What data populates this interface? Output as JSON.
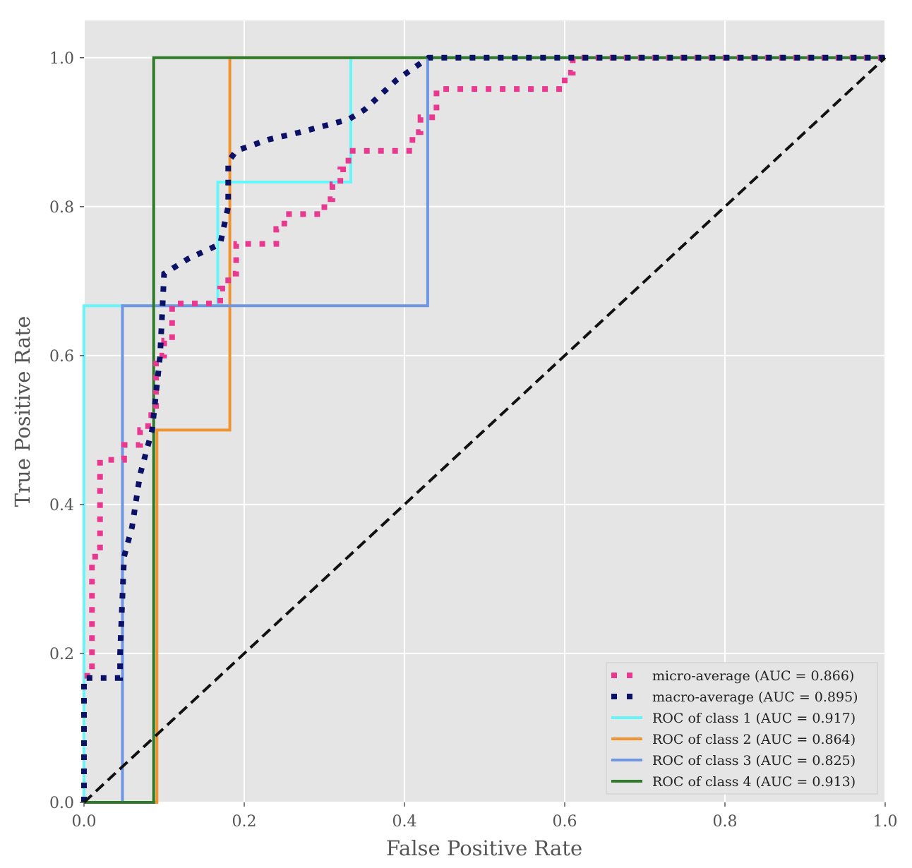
{
  "chart_data": {
    "type": "line",
    "xlabel": "False Positive Rate",
    "ylabel": "True Positive Rate",
    "xlim": [
      0.0,
      1.0
    ],
    "ylim": [
      0.0,
      1.05
    ],
    "xticks": [
      "0.0",
      "0.2",
      "0.4",
      "0.6",
      "0.8",
      "1.0"
    ],
    "yticks": [
      "0.0",
      "0.2",
      "0.4",
      "0.6",
      "0.8",
      "1.0"
    ],
    "grid": true,
    "legend_position": "lower right",
    "series": [
      {
        "name": "micro-average (AUC = 0.866)",
        "color": "#e8388f",
        "style": "dotted",
        "x": [
          0.0,
          0.0,
          0.01,
          0.01,
          0.02,
          0.02,
          0.03,
          0.03,
          0.05,
          0.05,
          0.07,
          0.07,
          0.08,
          0.08,
          0.09,
          0.09,
          0.1,
          0.1,
          0.11,
          0.11,
          0.17,
          0.17,
          0.18,
          0.18,
          0.19,
          0.19,
          0.24,
          0.24,
          0.25,
          0.25,
          0.3,
          0.3,
          0.31,
          0.31,
          0.32,
          0.32,
          0.33,
          0.33,
          0.41,
          0.41,
          0.42,
          0.42,
          0.44,
          0.44,
          0.6,
          0.6,
          0.61,
          0.61,
          1.0
        ],
        "y": [
          0.0,
          0.17,
          0.17,
          0.33,
          0.33,
          0.46,
          0.46,
          0.46,
          0.46,
          0.48,
          0.48,
          0.5,
          0.5,
          0.52,
          0.52,
          0.6,
          0.6,
          0.62,
          0.62,
          0.67,
          0.67,
          0.69,
          0.69,
          0.71,
          0.71,
          0.75,
          0.75,
          0.77,
          0.77,
          0.79,
          0.79,
          0.81,
          0.81,
          0.83,
          0.83,
          0.85,
          0.85,
          0.875,
          0.875,
          0.9,
          0.9,
          0.92,
          0.92,
          0.958,
          0.958,
          0.98,
          0.98,
          1.0,
          1.0
        ]
      },
      {
        "name": "macro-average (AUC = 0.895)",
        "color": "#0b1166",
        "style": "dotted",
        "x": [
          0.0,
          0.0,
          0.045,
          0.045,
          0.05,
          0.06,
          0.07,
          0.085,
          0.09,
          0.095,
          0.1,
          0.13,
          0.17,
          0.18,
          0.18,
          0.19,
          0.23,
          0.27,
          0.33,
          0.35,
          0.39,
          0.43,
          0.5,
          0.6,
          0.75,
          1.0
        ],
        "y": [
          0.0,
          0.167,
          0.167,
          0.2,
          0.33,
          0.37,
          0.44,
          0.5,
          0.55,
          0.6,
          0.71,
          0.73,
          0.75,
          0.8,
          0.86,
          0.875,
          0.89,
          0.9,
          0.917,
          0.93,
          0.97,
          1.0,
          1.0,
          1.0,
          1.0,
          1.0
        ]
      },
      {
        "name": "ROC of class 1 (AUC = 0.917)",
        "color": "#66f6fa",
        "style": "solid",
        "x": [
          0.0,
          0.0,
          0.167,
          0.167,
          0.333,
          0.333,
          1.0
        ],
        "y": [
          0.0,
          0.667,
          0.667,
          0.833,
          0.833,
          1.0,
          1.0
        ]
      },
      {
        "name": "ROC of class 2 (AUC = 0.864)",
        "color": "#f0932f",
        "style": "solid",
        "x": [
          0.0,
          0.091,
          0.091,
          0.182,
          0.182,
          1.0
        ],
        "y": [
          0.0,
          0.0,
          0.5,
          0.5,
          1.0,
          1.0
        ]
      },
      {
        "name": "ROC of class 3 (AUC = 0.825)",
        "color": "#6f96e3",
        "style": "solid",
        "x": [
          0.0,
          0.048,
          0.048,
          0.429,
          0.429,
          1.0
        ],
        "y": [
          0.0,
          0.0,
          0.667,
          0.667,
          1.0,
          1.0
        ]
      },
      {
        "name": "ROC of class 4 (AUC = 0.913)",
        "color": "#2f7a2a",
        "style": "solid",
        "x": [
          0.0,
          0.087,
          0.087,
          1.0
        ],
        "y": [
          0.0,
          0.0,
          1.0,
          1.0
        ]
      }
    ],
    "reference_line": {
      "x": [
        0.0,
        1.0
      ],
      "y": [
        0.0,
        1.0
      ],
      "color": "#111111",
      "style": "dashed"
    }
  }
}
